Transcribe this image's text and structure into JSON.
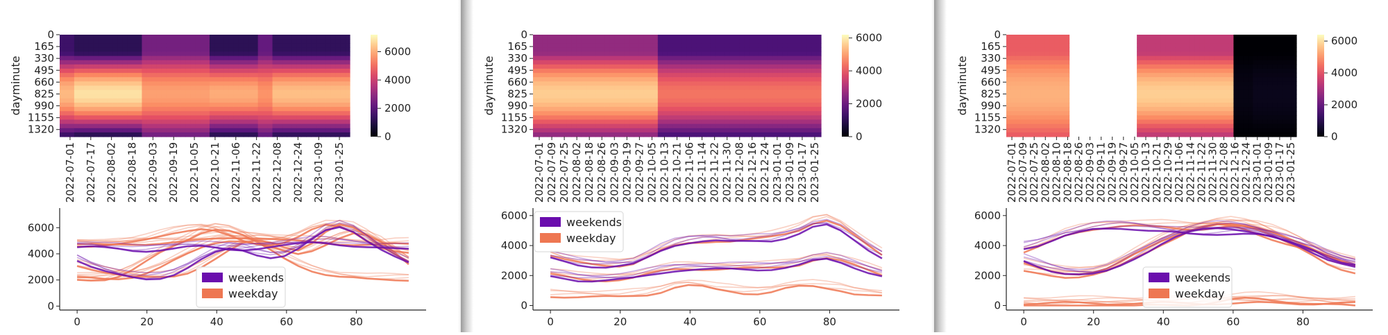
{
  "chart_data": [
    {
      "type": "heatmap",
      "ylabel": "dayminute",
      "y_ticks": [
        "0",
        "165",
        "330",
        "495",
        "660",
        "825",
        "990",
        "1155",
        "1320"
      ],
      "x_ticks": [
        "2022-07-01",
        "2022-07-17",
        "2022-08-02",
        "2022-08-18",
        "2022-09-03",
        "2022-09-19",
        "2022-10-05",
        "2022-10-21",
        "2022-11-06",
        "2022-11-22",
        "2022-12-08",
        "2022-12-24",
        "2023-01-09",
        "2023-01-25"
      ],
      "colorbar": {
        "ticks": [
          "0",
          "2000",
          "4000",
          "6000"
        ],
        "range": [
          0,
          7200
        ],
        "colormap": "magma"
      },
      "segments": [
        {
          "from": 0.0,
          "to": 0.05,
          "peak": 6200,
          "trough": 1500
        },
        {
          "from": 0.05,
          "to": 0.28,
          "peak": 6800,
          "trough": 1200
        },
        {
          "from": 0.28,
          "to": 0.52,
          "peak": 5800,
          "trough": 2500
        },
        {
          "from": 0.52,
          "to": 0.68,
          "peak": 6000,
          "trough": 1200
        },
        {
          "from": 0.68,
          "to": 0.74,
          "peak": 5600,
          "trough": 2200
        },
        {
          "from": 0.74,
          "to": 1.0,
          "peak": 6300,
          "trough": 1300
        }
      ]
    },
    {
      "type": "heatmap",
      "ylabel": "dayminute",
      "y_ticks": [
        "0",
        "165",
        "330",
        "495",
        "660",
        "825",
        "990",
        "1155",
        "1320"
      ],
      "x_ticks": [
        "2022-07-01",
        "2022-07-09",
        "2022-07-25",
        "2022-08-02",
        "2022-08-18",
        "2022-08-26",
        "2022-09-03",
        "2022-09-19",
        "2022-09-27",
        "2022-10-05",
        "2022-10-13",
        "2022-10-21",
        "2022-11-06",
        "2022-11-14",
        "2022-11-22",
        "2022-11-30",
        "2022-12-08",
        "2022-12-16",
        "2022-12-24",
        "2023-01-01",
        "2023-01-09",
        "2023-01-17",
        "2023-01-25"
      ],
      "colorbar": {
        "ticks": [
          "0",
          "2000",
          "4000",
          "6000"
        ],
        "range": [
          0,
          6200
        ],
        "colormap": "magma"
      },
      "segments": [
        {
          "from": 0.0,
          "to": 0.44,
          "peak": 5600,
          "trough": 2600
        },
        {
          "from": 0.44,
          "to": 1.0,
          "peak": 4400,
          "trough": 1500
        }
      ]
    },
    {
      "type": "heatmap",
      "ylabel": "dayminute",
      "y_ticks": [
        "0",
        "165",
        "330",
        "495",
        "660",
        "825",
        "990",
        "1155",
        "1320"
      ],
      "x_ticks": [
        "2022-07-01",
        "2022-07-09",
        "2022-07-25",
        "2022-08-02",
        "2022-08-10",
        "2022-08-18",
        "2022-08-26",
        "2022-09-03",
        "2022-09-11",
        "2022-09-19",
        "2022-09-27",
        "2022-10-05",
        "2022-10-13",
        "2022-10-21",
        "2022-10-29",
        "2022-11-06",
        "2022-11-14",
        "2022-11-22",
        "2022-11-30",
        "2022-12-08",
        "2022-12-16",
        "2022-12-24",
        "2023-01-01",
        "2023-01-09",
        "2023-01-17",
        "2023-01-25"
      ],
      "colorbar": {
        "ticks": [
          "0",
          "2000",
          "4000",
          "6000"
        ],
        "range": [
          0,
          6400
        ],
        "colormap": "magma"
      },
      "segments": [
        {
          "from": 0.0,
          "to": 0.22,
          "peak": 5400,
          "trough": 4200
        },
        {
          "from": 0.22,
          "to": 0.45,
          "missing": true
        },
        {
          "from": 0.45,
          "to": 0.78,
          "peak": 5800,
          "trough": 3400
        },
        {
          "from": 0.78,
          "to": 0.85,
          "peak": 200,
          "trough": 0
        },
        {
          "from": 0.85,
          "to": 1.0,
          "peak": 300,
          "trough": 0
        }
      ]
    },
    {
      "type": "line",
      "x_ticks": [
        "0",
        "20",
        "40",
        "60",
        "80"
      ],
      "y_ticks": [
        "0",
        "2000",
        "4000",
        "6000"
      ],
      "xlim": [
        -5,
        100
      ],
      "ylim": [
        -300,
        7500
      ],
      "legend": {
        "position": "lower center",
        "entries": [
          {
            "label": "weekends",
            "color": "#6a0dad"
          },
          {
            "label": "weekday",
            "color": "#ee7752"
          }
        ]
      },
      "series": [
        {
          "color": "#ee7752",
          "values": [
            5000,
            4950,
            4900,
            4950,
            5000,
            5050,
            5100,
            5150,
            5200,
            5300,
            5400,
            5500,
            5550,
            5500,
            5400,
            5300,
            5200,
            5150,
            5100,
            5050,
            5000,
            4950,
            4950,
            5000,
            5000
          ]
        },
        {
          "color": "#ee7752",
          "values": [
            2300,
            2250,
            2200,
            2250,
            2400,
            2700,
            3100,
            3600,
            4100,
            4600,
            5000,
            5200,
            5150,
            4900,
            4600,
            4300,
            4100,
            4400,
            4900,
            5400,
            5700,
            5500,
            5000,
            4200,
            3400
          ]
        },
        {
          "color": "#ee7752",
          "values": [
            2200,
            2200,
            2300,
            2600,
            3100,
            3700,
            4300,
            4800,
            5300,
            5900,
            6200,
            6100,
            5700,
            5100,
            4500,
            3900,
            3400,
            3000,
            2700,
            2500,
            2400,
            2300,
            2300,
            2300,
            2300
          ]
        },
        {
          "color": "#ee7752",
          "values": [
            3200,
            3000,
            2800,
            2600,
            2400,
            2300,
            2300,
            2400,
            2700,
            3200,
            3800,
            4400,
            4900,
            5100,
            5000,
            4700,
            4500,
            5000,
            5800,
            6300,
            6100,
            5500,
            4800,
            4200,
            3600
          ]
        },
        {
          "color": "#ee7752",
          "values": [
            4900,
            4900,
            4950,
            5000,
            5100,
            5300,
            5600,
            5900,
            6100,
            6200,
            6000,
            5600,
            5200,
            5000,
            5000,
            5200,
            5600,
            6100,
            6400,
            6300,
            5900,
            5300,
            4800,
            4500,
            4300
          ]
        },
        {
          "color": "#6a0dad",
          "values": [
            3700,
            3200,
            2800,
            2500,
            2300,
            2200,
            2300,
            2600,
            3100,
            3700,
            4200,
            4500,
            4400,
            4100,
            3900,
            4000,
            4500,
            5200,
            5900,
            6200,
            5900,
            5200,
            4500,
            3900,
            3400
          ]
        },
        {
          "color": "#6a0dad",
          "values": [
            4800,
            4800,
            4700,
            4600,
            4500,
            4500,
            4600,
            4700,
            4800,
            4800,
            4700,
            4600,
            4600,
            4700,
            4800,
            4900,
            5000,
            5100,
            5100,
            5000,
            4900,
            4800,
            4700,
            4600,
            4600
          ]
        }
      ]
    },
    {
      "type": "line",
      "x_ticks": [
        "0",
        "20",
        "40",
        "60",
        "80"
      ],
      "y_ticks": [
        "0",
        "2000",
        "4000",
        "6000"
      ],
      "xlim": [
        -5,
        100
      ],
      "ylim": [
        -300,
        6500
      ],
      "legend": {
        "position": "upper left",
        "entries": [
          {
            "label": "weekends",
            "color": "#6a0dad"
          },
          {
            "label": "weekday",
            "color": "#ee7752"
          }
        ]
      },
      "series": [
        {
          "color": "#ee7752",
          "values": [
            3600,
            3300,
            3100,
            3000,
            2950,
            2950,
            3100,
            3500,
            3900,
            4200,
            4400,
            4500,
            4600,
            4600,
            4650,
            4700,
            4800,
            5000,
            5300,
            5800,
            6000,
            5600,
            4900,
            4200,
            3600
          ]
        },
        {
          "color": "#ee7752",
          "values": [
            2200,
            2050,
            1900,
            1850,
            1850,
            1900,
            2000,
            2200,
            2400,
            2550,
            2600,
            2600,
            2600,
            2600,
            2600,
            2600,
            2650,
            2750,
            2900,
            3200,
            3300,
            3100,
            2800,
            2500,
            2200
          ]
        },
        {
          "color": "#6a0dad",
          "values": [
            3400,
            3200,
            3000,
            2900,
            2850,
            2900,
            3000,
            3400,
            3900,
            4300,
            4500,
            4600,
            4600,
            4500,
            4500,
            4550,
            4600,
            4800,
            5100,
            5500,
            5600,
            5200,
            4600,
            4000,
            3500
          ]
        },
        {
          "color": "#6a0dad",
          "values": [
            2100,
            2000,
            1850,
            1800,
            1800,
            1850,
            1950,
            2150,
            2350,
            2500,
            2550,
            2550,
            2550,
            2550,
            2550,
            2550,
            2600,
            2700,
            2850,
            3100,
            3200,
            3000,
            2700,
            2400,
            2150
          ]
        },
        {
          "color": "#ee7752",
          "values": [
            900,
            880,
            860,
            840,
            820,
            820,
            900,
            1000,
            1200,
            1500,
            1600,
            1500,
            1300,
            1200,
            1100,
            1100,
            1200,
            1400,
            1500,
            1500,
            1400,
            1300,
            1100,
            1000,
            900
          ]
        }
      ]
    },
    {
      "type": "line",
      "x_ticks": [
        "0",
        "20",
        "40",
        "60",
        "80"
      ],
      "y_ticks": [
        "0",
        "2000",
        "4000",
        "6000"
      ],
      "xlim": [
        -5,
        100
      ],
      "ylim": [
        -300,
        6500
      ],
      "legend": {
        "position": "lower center",
        "entries": [
          {
            "label": "weekends",
            "color": "#6a0dad"
          },
          {
            "label": "weekday",
            "color": "#ee7752"
          }
        ]
      },
      "series": [
        {
          "color": "#ee7752",
          "values": [
            3800,
            4100,
            4500,
            4900,
            5200,
            5400,
            5500,
            5550,
            5550,
            5500,
            5500,
            5450,
            5400,
            5400,
            5450,
            5500,
            5500,
            5400,
            5200,
            4900,
            4500,
            4000,
            3500,
            3100,
            2900
          ]
        },
        {
          "color": "#ee7752",
          "values": [
            2900,
            2600,
            2400,
            2300,
            2300,
            2400,
            2600,
            3000,
            3500,
            4000,
            4500,
            4900,
            5200,
            5400,
            5500,
            5400,
            5200,
            4900,
            4600,
            4300,
            4000,
            3700,
            3400,
            3100,
            2900
          ]
        },
        {
          "color": "#ee7752",
          "values": [
            2500,
            2400,
            2300,
            2200,
            2200,
            2300,
            2500,
            2900,
            3400,
            3900,
            4400,
            4800,
            5200,
            5400,
            5600,
            5700,
            5600,
            5400,
            5000,
            4500,
            4000,
            3500,
            3000,
            2700,
            2500
          ]
        },
        {
          "color": "#6a0dad",
          "values": [
            3100,
            2800,
            2500,
            2300,
            2200,
            2200,
            2400,
            2800,
            3300,
            3800,
            4300,
            4700,
            5000,
            5200,
            5300,
            5300,
            5200,
            5000,
            4700,
            4400,
            4100,
            3800,
            3400,
            3100,
            2900
          ]
        },
        {
          "color": "#6a0dad",
          "values": [
            4100,
            4300,
            4600,
            4900,
            5100,
            5300,
            5400,
            5450,
            5400,
            5300,
            5200,
            5100,
            5000,
            5000,
            5050,
            5100,
            5100,
            5000,
            4800,
            4500,
            4200,
            3800,
            3400,
            3100,
            2800
          ]
        },
        {
          "color": "#ee7752",
          "values": [
            300,
            300,
            300,
            300,
            300,
            300,
            300,
            300,
            300,
            300,
            300,
            300,
            300,
            300,
            300,
            300,
            300,
            300,
            300,
            300,
            300,
            300,
            300,
            300,
            300
          ]
        },
        {
          "color": "#ee7752",
          "values": [
            200,
            180,
            160,
            150,
            150,
            150,
            160,
            180,
            200,
            230,
            260,
            300,
            350,
            420,
            520,
            640,
            700,
            680,
            620,
            560,
            480,
            400,
            320,
            260,
            220
          ]
        }
      ]
    }
  ]
}
